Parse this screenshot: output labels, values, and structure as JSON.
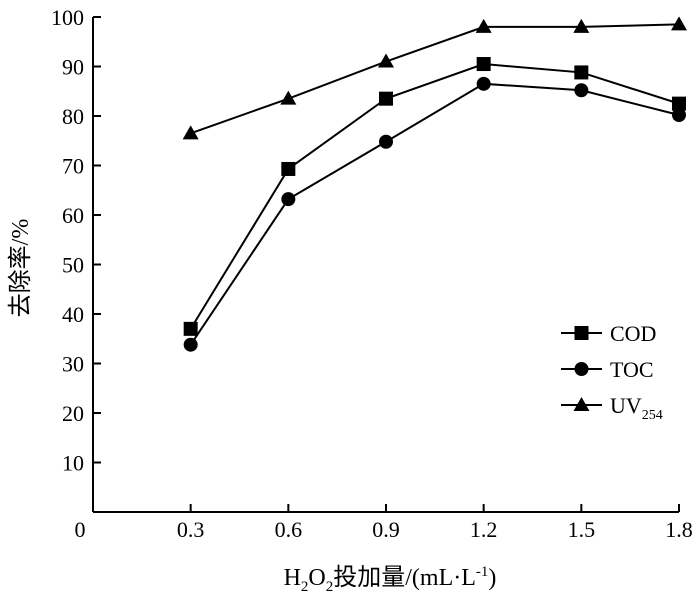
{
  "chart_data": {
    "type": "line",
    "x": [
      0.3,
      0.6,
      0.9,
      1.2,
      1.5,
      1.8
    ],
    "xlim": [
      0,
      1.8
    ],
    "ylim": [
      0,
      100
    ],
    "x_ticks": [
      "0",
      "0.3",
      "0.6",
      "0.9",
      "1.2",
      "1.5",
      "1.8"
    ],
    "y_ticks": [
      "10",
      "20",
      "30",
      "40",
      "50",
      "60",
      "70",
      "80",
      "90",
      "100"
    ],
    "xlabel": {
      "pre": "H",
      "sub1": "2",
      "mid": "O",
      "sub2": "2",
      "post": "投加量/(mL·L",
      "sup": "-1",
      "end": ")"
    },
    "ylabel": "去除率/%",
    "series": [
      {
        "name": "COD",
        "sub": "",
        "marker": "square",
        "values": [
          37,
          69.3,
          83.5,
          90.5,
          88.8,
          82.5
        ]
      },
      {
        "name": "TOC",
        "sub": "",
        "marker": "circle",
        "values": [
          33.8,
          63.2,
          74.8,
          86.5,
          85.2,
          80.2
        ]
      },
      {
        "name": "UV",
        "sub": "254",
        "marker": "triangle",
        "values": [
          76.5,
          83.5,
          91,
          98,
          98,
          98.5
        ]
      }
    ],
    "legend_position": "right-middle",
    "grid": false,
    "color": "#000000"
  }
}
